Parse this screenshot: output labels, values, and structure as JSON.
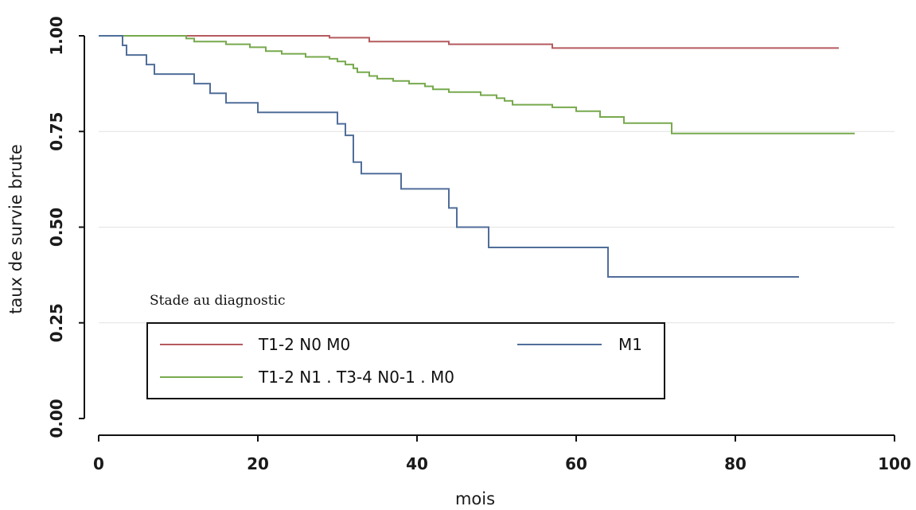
{
  "chart_data": {
    "type": "line",
    "xlabel": "mois",
    "ylabel": "taux de survie brute",
    "xlim": [
      0,
      100
    ],
    "ylim": [
      0,
      1
    ],
    "xticks": [
      "0",
      "20",
      "40",
      "60",
      "80",
      "100"
    ],
    "yticks": [
      "0.00",
      "0.25",
      "0.50",
      "0.75",
      "1.00"
    ],
    "grid": "horizontal",
    "legend_title": "Stade au diagnostic",
    "legend_position": "bottom-left",
    "series": [
      {
        "name": "T1-2 N0 M0",
        "color": "#b55a5f",
        "step": true,
        "points": [
          [
            0,
            1.0
          ],
          [
            29,
            1.0
          ],
          [
            29,
            0.995
          ],
          [
            34,
            0.995
          ],
          [
            34,
            0.985
          ],
          [
            44,
            0.985
          ],
          [
            44,
            0.978
          ],
          [
            57,
            0.978
          ],
          [
            57,
            0.968
          ],
          [
            93,
            0.968
          ]
        ]
      },
      {
        "name": "T1-2 N1 . T3-4 N0-1 . M0",
        "color": "#77a94d",
        "step": true,
        "points": [
          [
            0,
            1.0
          ],
          [
            11,
            1.0
          ],
          [
            11,
            0.993
          ],
          [
            12,
            0.993
          ],
          [
            12,
            0.985
          ],
          [
            16,
            0.985
          ],
          [
            16,
            0.978
          ],
          [
            19,
            0.978
          ],
          [
            19,
            0.97
          ],
          [
            21,
            0.97
          ],
          [
            21,
            0.96
          ],
          [
            23,
            0.96
          ],
          [
            23,
            0.953
          ],
          [
            26,
            0.953
          ],
          [
            26,
            0.945
          ],
          [
            29,
            0.945
          ],
          [
            29,
            0.94
          ],
          [
            30,
            0.94
          ],
          [
            30,
            0.933
          ],
          [
            31,
            0.933
          ],
          [
            31,
            0.925
          ],
          [
            32,
            0.925
          ],
          [
            32,
            0.915
          ],
          [
            32.5,
            0.915
          ],
          [
            32.5,
            0.905
          ],
          [
            34,
            0.905
          ],
          [
            34,
            0.895
          ],
          [
            35,
            0.895
          ],
          [
            35,
            0.888
          ],
          [
            37,
            0.888
          ],
          [
            37,
            0.882
          ],
          [
            39,
            0.882
          ],
          [
            39,
            0.875
          ],
          [
            41,
            0.875
          ],
          [
            41,
            0.868
          ],
          [
            42,
            0.868
          ],
          [
            42,
            0.86
          ],
          [
            44,
            0.86
          ],
          [
            44,
            0.853
          ],
          [
            48,
            0.853
          ],
          [
            48,
            0.845
          ],
          [
            50,
            0.845
          ],
          [
            50,
            0.837
          ],
          [
            51,
            0.837
          ],
          [
            51,
            0.83
          ],
          [
            52,
            0.83
          ],
          [
            52,
            0.82
          ],
          [
            57,
            0.82
          ],
          [
            57,
            0.813
          ],
          [
            60,
            0.813
          ],
          [
            60,
            0.803
          ],
          [
            63,
            0.803
          ],
          [
            63,
            0.788
          ],
          [
            66,
            0.788
          ],
          [
            66,
            0.772
          ],
          [
            72,
            0.772
          ],
          [
            72,
            0.745
          ],
          [
            95,
            0.745
          ]
        ]
      },
      {
        "name": "M1",
        "color": "#506e9a",
        "step": true,
        "points": [
          [
            0,
            1.0
          ],
          [
            3,
            1.0
          ],
          [
            3,
            0.975
          ],
          [
            3.5,
            0.975
          ],
          [
            3.5,
            0.95
          ],
          [
            6,
            0.95
          ],
          [
            6,
            0.925
          ],
          [
            7,
            0.925
          ],
          [
            7,
            0.9
          ],
          [
            12,
            0.9
          ],
          [
            12,
            0.875
          ],
          [
            14,
            0.875
          ],
          [
            14,
            0.85
          ],
          [
            16,
            0.85
          ],
          [
            16,
            0.825
          ],
          [
            20,
            0.825
          ],
          [
            20,
            0.8
          ],
          [
            30,
            0.8
          ],
          [
            30,
            0.77
          ],
          [
            31,
            0.77
          ],
          [
            31,
            0.74
          ],
          [
            32,
            0.74
          ],
          [
            32,
            0.67
          ],
          [
            33,
            0.67
          ],
          [
            33,
            0.64
          ],
          [
            38,
            0.64
          ],
          [
            38,
            0.6
          ],
          [
            44,
            0.6
          ],
          [
            44,
            0.55
          ],
          [
            45,
            0.55
          ],
          [
            45,
            0.5
          ],
          [
            49,
            0.5
          ],
          [
            49,
            0.447
          ],
          [
            64,
            0.447
          ],
          [
            64,
            0.37
          ],
          [
            88,
            0.37
          ]
        ]
      }
    ]
  }
}
